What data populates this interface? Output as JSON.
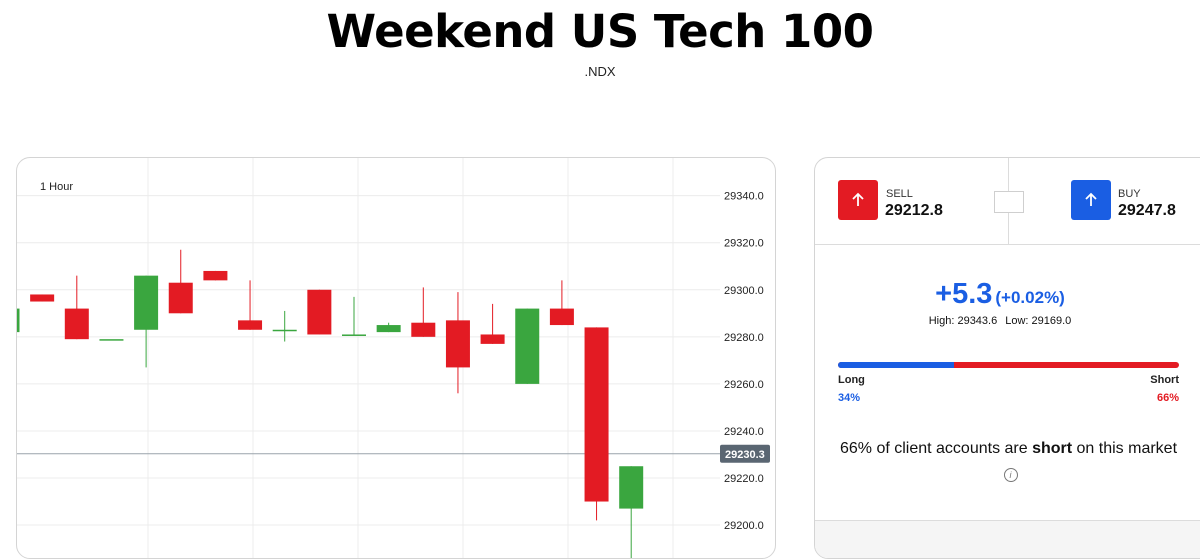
{
  "header": {
    "title": "Weekend US Tech 100",
    "symbol": ".NDX"
  },
  "chart": {
    "timeframe": "1 Hour",
    "current_price_label": "29230.3",
    "colors": {
      "up": "#3aa63f",
      "down": "#e31b23",
      "price_tag": "#5a6672",
      "grid": "#ececec"
    }
  },
  "chart_data": {
    "type": "candlestick",
    "ylim": [
      29186,
      29356
    ],
    "y_ticks": [
      "29340.0",
      "29320.0",
      "29300.0",
      "29280.0",
      "29260.0",
      "29240.0",
      "29220.0",
      "29200.0"
    ],
    "current_price": 29230.3,
    "candles": [
      {
        "open": 29282,
        "close": 29292,
        "high": 29292,
        "low": 29282
      },
      {
        "open": 29298,
        "close": 29295,
        "high": 29298,
        "low": 29295
      },
      {
        "open": 29292,
        "close": 29279,
        "high": 29306,
        "low": 29279
      },
      {
        "open": 29279,
        "close": 29279,
        "high": 29279,
        "low": 29279
      },
      {
        "open": 29283,
        "close": 29306,
        "high": 29306,
        "low": 29267
      },
      {
        "open": 29303,
        "close": 29290,
        "high": 29317,
        "low": 29290
      },
      {
        "open": 29308,
        "close": 29304,
        "high": 29308,
        "low": 29304
      },
      {
        "open": 29287,
        "close": 29283,
        "high": 29304,
        "low": 29283
      },
      {
        "open": 29283,
        "close": 29283,
        "high": 29291,
        "low": 29278
      },
      {
        "open": 29300,
        "close": 29281,
        "high": 29300,
        "low": 29281
      },
      {
        "open": 29281,
        "close": 29281,
        "high": 29297,
        "low": 29281
      },
      {
        "open": 29282,
        "close": 29285,
        "high": 29286,
        "low": 29282
      },
      {
        "open": 29286,
        "close": 29280,
        "high": 29301,
        "low": 29280
      },
      {
        "open": 29287,
        "close": 29267,
        "high": 29299,
        "low": 29256
      },
      {
        "open": 29281,
        "close": 29277,
        "high": 29294,
        "low": 29277
      },
      {
        "open": 29260,
        "close": 29292,
        "high": 29292,
        "low": 29260
      },
      {
        "open": 29292,
        "close": 29285,
        "high": 29304,
        "low": 29285
      },
      {
        "open": 29284,
        "close": 29210,
        "high": 29284,
        "low": 29202
      },
      {
        "open": 29207,
        "close": 29225,
        "high": 29225,
        "low": 29183
      }
    ]
  },
  "trade": {
    "sell": {
      "label": "SELL",
      "price": "29212.8",
      "icon": "arrow-up-icon",
      "color": "#e31b23"
    },
    "buy": {
      "label": "BUY",
      "price": "29247.8",
      "icon": "arrow-up-icon",
      "color": "#1a5ee3"
    }
  },
  "stats": {
    "change": "+5.3",
    "change_pct": "(+0.02%)",
    "high": "High: 29343.6",
    "low": "Low: 29169.0"
  },
  "sentiment": {
    "long_label": "Long",
    "short_label": "Short",
    "long_pct": "34%",
    "short_pct": "66%",
    "long_fraction": 0.34,
    "summary_pre": "66% of client accounts are ",
    "summary_bold": "short",
    "summary_post": " on this market",
    "info_icon": "info-icon"
  }
}
